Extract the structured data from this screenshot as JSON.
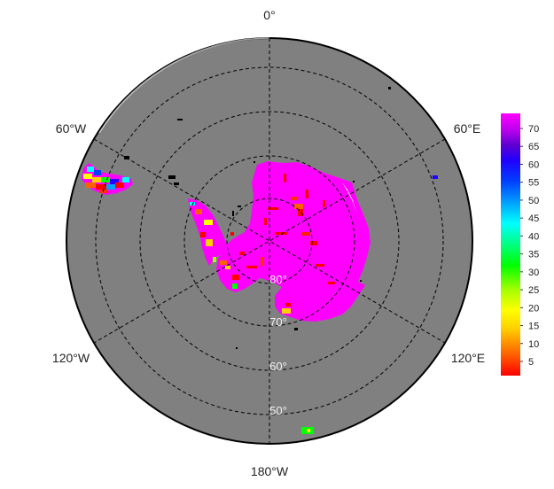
{
  "map": {
    "projection": "south-polar-stereographic",
    "ocean_color": "#808080",
    "background": "#ffffff",
    "grid_style": "dashed",
    "longitude_labels": {
      "top": "0°",
      "upper_left": "60°W",
      "upper_right": "60°E",
      "lower_left": "120°W",
      "lower_right": "120°E",
      "bottom": "180°W"
    },
    "latitude_labels": [
      "80°",
      "70°",
      "60°",
      "50°"
    ]
  },
  "colorbar": {
    "ticks": [
      "70",
      "65",
      "60",
      "55",
      "50",
      "45",
      "40",
      "35",
      "30",
      "25",
      "20",
      "15",
      "10",
      "5"
    ],
    "range": [
      0,
      75
    ],
    "colormap": [
      "#ff0000",
      "#ff6000",
      "#ffd000",
      "#ffff00",
      "#a0ff00",
      "#00ff00",
      "#00ff80",
      "#00ffff",
      "#00a0ff",
      "#0040ff",
      "#2000ff",
      "#6000d0",
      "#c000f0",
      "#ff00ff"
    ]
  }
}
